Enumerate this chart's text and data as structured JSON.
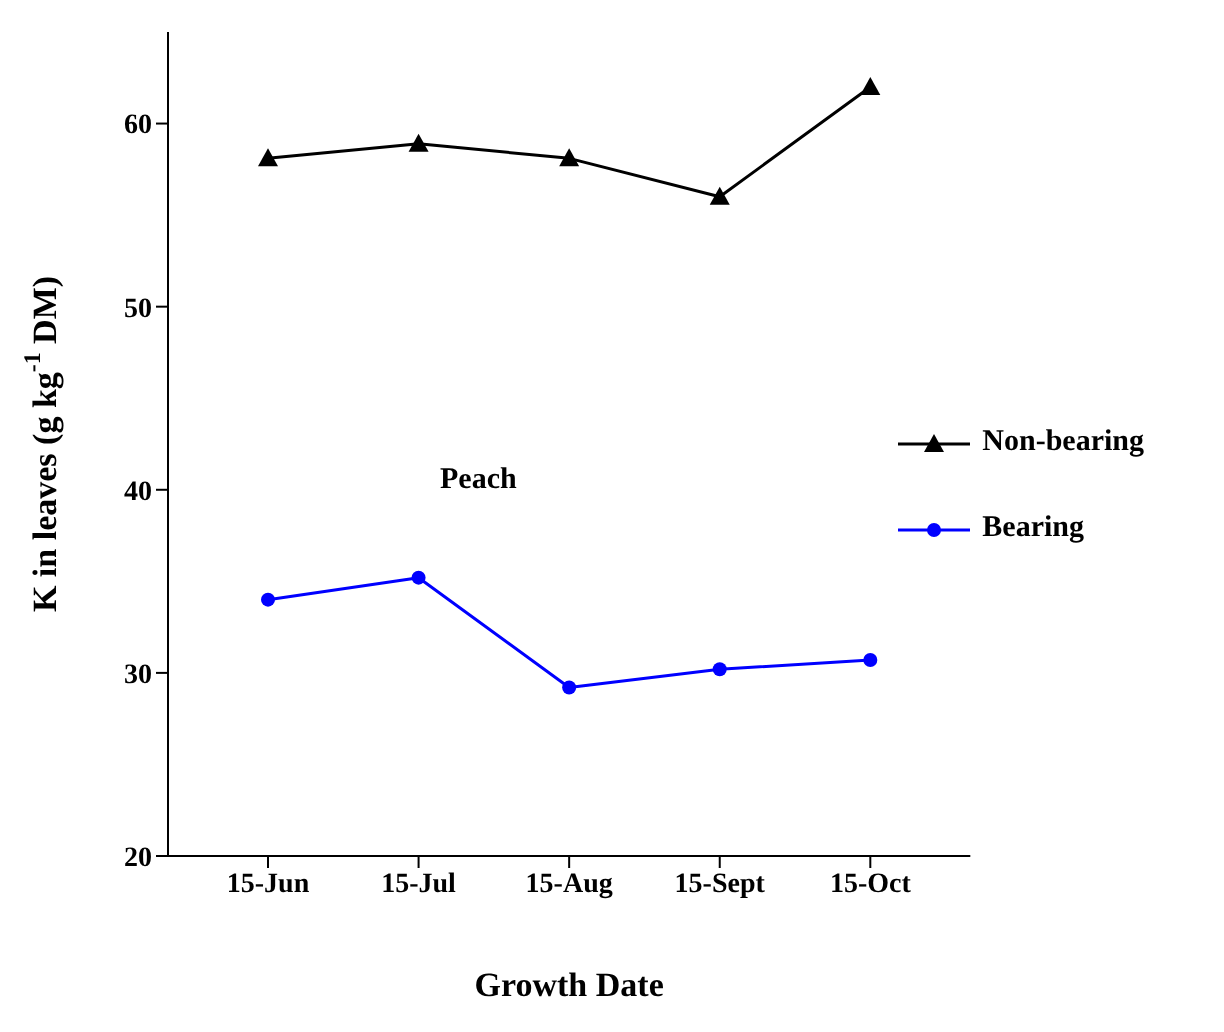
{
  "chart_data": {
    "type": "line",
    "xlabel": "Growth Date",
    "ylabel": "K in leaves (g kg$^{-1}$ DM)",
    "categories": [
      "15-Jun",
      "15-Jul",
      "15-Aug",
      "15-Sept",
      "15-Oct"
    ],
    "series": [
      {
        "name": "Non-bearing",
        "color": "#000000",
        "marker": "triangle",
        "values": [
          58.1,
          58.9,
          58.1,
          56.0,
          62.0
        ]
      },
      {
        "name": "Bearing",
        "color": "#0000ff",
        "marker": "circle",
        "values": [
          34.0,
          35.2,
          29.2,
          30.2,
          30.7
        ]
      }
    ],
    "ylim": [
      20,
      65
    ],
    "yticks": [
      20,
      30,
      40,
      50,
      60
    ],
    "grid": false,
    "legend": "right",
    "annotations": [
      "Peach"
    ]
  }
}
